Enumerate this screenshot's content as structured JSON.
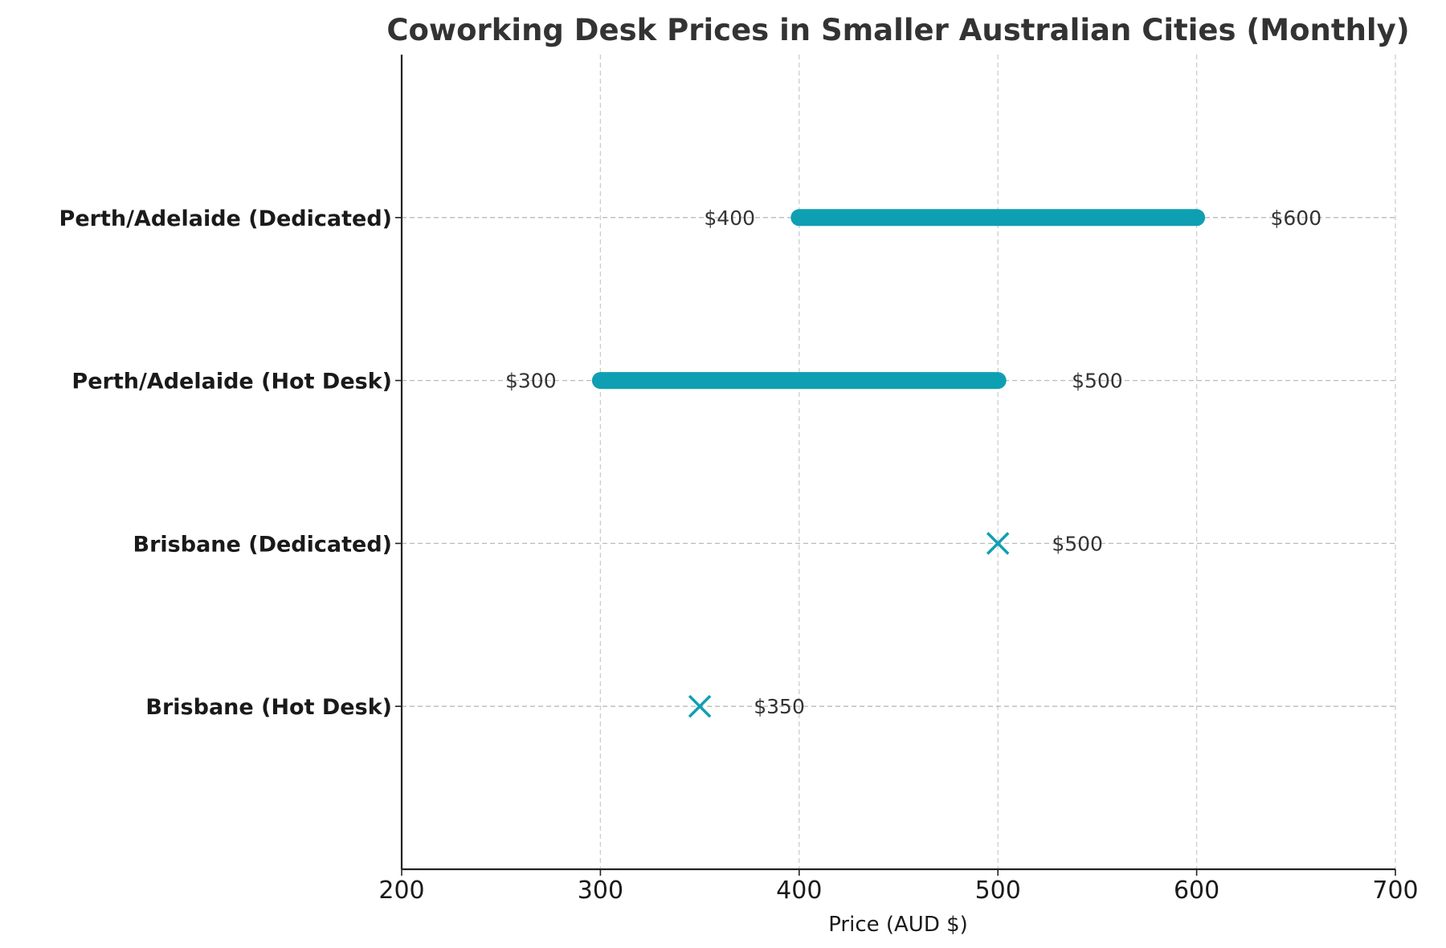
{
  "chart_data": {
    "type": "range",
    "title": "Coworking Desk Prices in Smaller Australian Cities (Monthly)",
    "xlabel": "Price (AUD $)",
    "ylabel": "",
    "xlim": [
      200,
      700
    ],
    "xticks": [
      200,
      300,
      400,
      500,
      600,
      700
    ],
    "grid": true,
    "legend": null,
    "color": "#0f9fb2",
    "categories": [
      "Brisbane (Hot Desk)",
      "Brisbane (Dedicated)",
      "Perth/Adelaide (Hot Desk)",
      "Perth/Adelaide (Dedicated)"
    ],
    "series": [
      {
        "category": "Brisbane (Hot Desk)",
        "min": 350,
        "max": 350,
        "marker": "x",
        "labels": [
          "$350"
        ]
      },
      {
        "category": "Brisbane (Dedicated)",
        "min": 500,
        "max": 500,
        "marker": "x",
        "labels": [
          "$500"
        ]
      },
      {
        "category": "Perth/Adelaide (Hot Desk)",
        "min": 300,
        "max": 500,
        "marker": "range",
        "labels": [
          "$300",
          "$500"
        ]
      },
      {
        "category": "Perth/Adelaide (Dedicated)",
        "min": 400,
        "max": 600,
        "marker": "range",
        "labels": [
          "$400",
          "$600"
        ]
      }
    ]
  }
}
